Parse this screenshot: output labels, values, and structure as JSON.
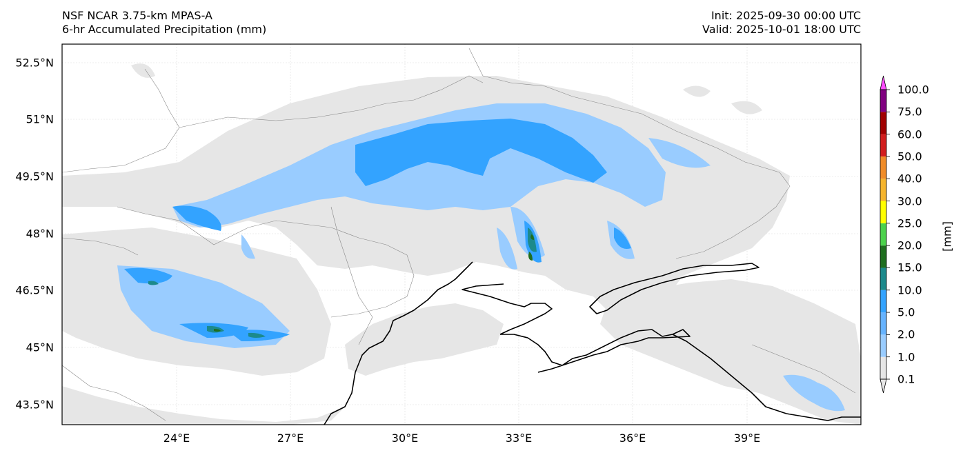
{
  "header": {
    "model_name": "NSF NCAR 3.75-km MPAS-A",
    "field_name": "6-hr Accumulated Precipitation (mm)",
    "init_time": "Init: 2025-09-30 00:00 UTC",
    "valid_time": "Valid: 2025-10-01 18:00 UTC"
  },
  "axes": {
    "lat_ticks": [
      "52.5°N",
      "51°N",
      "49.5°N",
      "48°N",
      "46.5°N",
      "45°N",
      "43.5°N"
    ],
    "lon_ticks": [
      "24°E",
      "27°E",
      "30°E",
      "33°E",
      "36°E",
      "39°E"
    ],
    "grid": true
  },
  "colorbar": {
    "unit": "[mm]",
    "levels": [
      "0.1",
      "1.0",
      "2.0",
      "5.0",
      "10.0",
      "15.0",
      "20.0",
      "25.0",
      "30.0",
      "40.0",
      "50.0",
      "60.0",
      "75.0",
      "100.0"
    ],
    "colors": [
      "#e6e6e6",
      "#99ccff",
      "#66b3ff",
      "#33a3ff",
      "#1c8a8c",
      "#1f6e1f",
      "#4cd24c",
      "#ffff00",
      "#f5b42d",
      "#f08c28",
      "#d21e1e",
      "#a00000",
      "#800080",
      "#ff4dff"
    ],
    "extend": "both"
  },
  "map": {
    "precip_light": "#e6e6e6",
    "precip_1": "#99ccff",
    "precip_5": "#33a3ff",
    "precip_10": "#1c8a8c",
    "precip_15": "#1f6e1f",
    "coast_color": "#000000",
    "border_color": "#888888"
  }
}
